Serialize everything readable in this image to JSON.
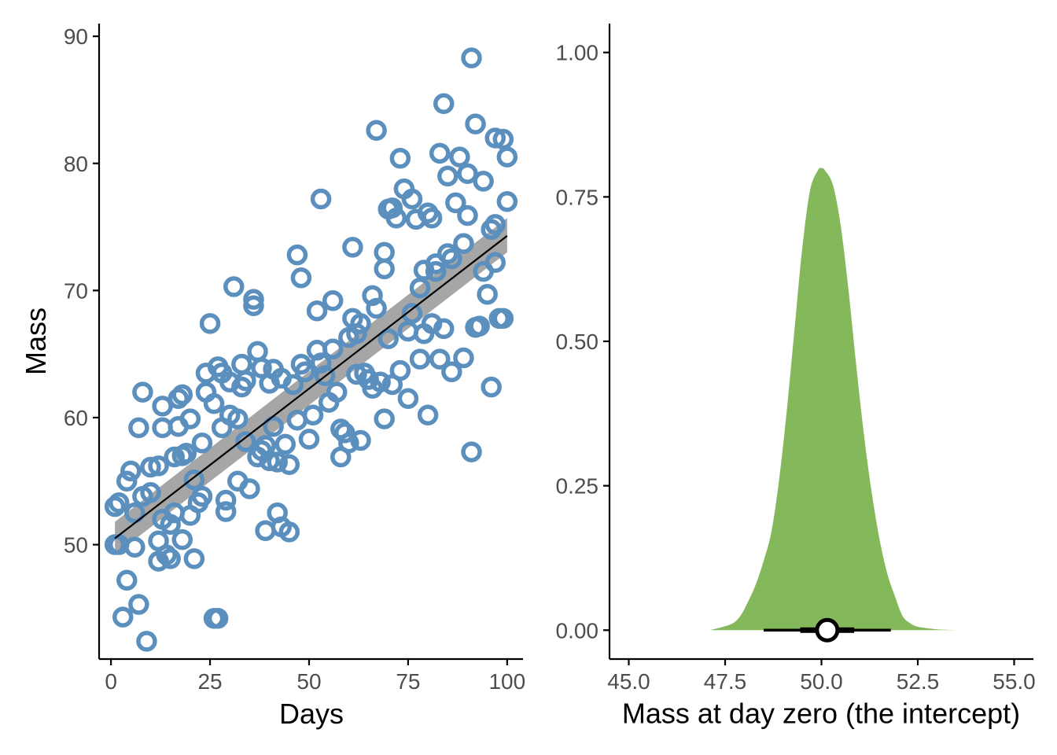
{
  "colors": {
    "points": "#5b8fbd",
    "ribbon": "#a6a6a6",
    "fit_line": "#000000",
    "density": "#84b95b",
    "interval": "#000000"
  },
  "chart_data": [
    {
      "type": "scatter",
      "title": "",
      "xlabel": "Days",
      "ylabel": "Mass",
      "xlim": [
        -3,
        104
      ],
      "ylim": [
        41,
        91
      ],
      "x_ticks": [
        0,
        25,
        50,
        75,
        100
      ],
      "x_tick_labels": [
        "0",
        "25",
        "50",
        "75",
        "100"
      ],
      "y_ticks": [
        50,
        60,
        70,
        80,
        90
      ],
      "y_tick_labels": [
        "50",
        "60",
        "70",
        "80",
        "90"
      ],
      "grid": false,
      "legend": "none",
      "fit": {
        "type": "line",
        "x": [
          1,
          100
        ],
        "y": [
          50.5,
          74.3
        ],
        "ribbon_lower": [
          49.2,
          73.0
        ],
        "ribbon_upper": [
          51.8,
          75.7
        ]
      },
      "points": [
        [
          1,
          53
        ],
        [
          1,
          50
        ],
        [
          2,
          50
        ],
        [
          2,
          53.3
        ],
        [
          3,
          44.3
        ],
        [
          4,
          47.2
        ],
        [
          4,
          55
        ],
        [
          5,
          55.8
        ],
        [
          6,
          52.5
        ],
        [
          6,
          49.8
        ],
        [
          7,
          45.3
        ],
        [
          7,
          59.2
        ],
        [
          8,
          62
        ],
        [
          8,
          53.8
        ],
        [
          9,
          42.4
        ],
        [
          10,
          54.1
        ],
        [
          10,
          56.1
        ],
        [
          12,
          56.2
        ],
        [
          12,
          50.3
        ],
        [
          12,
          48.7
        ],
        [
          13,
          52
        ],
        [
          13,
          59.2
        ],
        [
          13,
          60.9
        ],
        [
          14,
          49.2
        ],
        [
          15,
          48.9
        ],
        [
          15,
          51.6
        ],
        [
          16,
          52.5
        ],
        [
          16,
          56.9
        ],
        [
          17,
          61.5
        ],
        [
          17,
          59.3
        ],
        [
          18,
          61.8
        ],
        [
          18,
          57
        ],
        [
          18,
          50.4
        ],
        [
          19,
          57.2
        ],
        [
          20,
          59.9
        ],
        [
          20,
          52.3
        ],
        [
          21,
          48.9
        ],
        [
          21,
          55.1
        ],
        [
          22,
          53.3
        ],
        [
          23,
          58
        ],
        [
          23,
          53.8
        ],
        [
          24,
          62
        ],
        [
          24,
          63.5
        ],
        [
          25,
          67.4
        ],
        [
          26,
          61.1
        ],
        [
          26,
          44.2
        ],
        [
          27,
          64
        ],
        [
          27,
          44.2
        ],
        [
          28,
          63.5
        ],
        [
          28,
          59.2
        ],
        [
          29,
          52.6
        ],
        [
          29,
          53.5
        ],
        [
          30,
          62.8
        ],
        [
          30,
          60.2
        ],
        [
          31,
          70.3
        ],
        [
          32,
          59.9
        ],
        [
          32,
          55
        ],
        [
          33,
          62.4
        ],
        [
          33,
          64.2
        ],
        [
          34,
          62.9
        ],
        [
          34,
          58.1
        ],
        [
          35,
          54.4
        ],
        [
          36,
          69.3
        ],
        [
          36,
          68.8
        ],
        [
          37,
          65.2
        ],
        [
          37,
          56.9
        ],
        [
          38,
          57.4
        ],
        [
          38,
          63.9
        ],
        [
          39,
          51.1
        ],
        [
          39,
          57.8
        ],
        [
          40,
          62.7
        ],
        [
          40,
          56.6
        ],
        [
          41,
          59.3
        ],
        [
          41,
          63.8
        ],
        [
          42,
          52.5
        ],
        [
          42,
          56.5
        ],
        [
          43,
          63.1
        ],
        [
          43,
          51.4
        ],
        [
          44,
          57.9
        ],
        [
          45,
          51
        ],
        [
          45,
          56.3
        ],
        [
          46,
          62.6
        ],
        [
          47,
          72.8
        ],
        [
          47,
          59.8
        ],
        [
          48,
          64.2
        ],
        [
          48,
          71
        ],
        [
          49,
          63.6
        ],
        [
          50,
          58.3
        ],
        [
          51,
          60.2
        ],
        [
          52,
          65.3
        ],
        [
          52,
          68.4
        ],
        [
          53,
          77.2
        ],
        [
          53,
          64.3
        ],
        [
          54,
          63.3
        ],
        [
          55,
          61.2
        ],
        [
          56,
          69.2
        ],
        [
          56,
          65.4
        ],
        [
          57,
          62
        ],
        [
          58,
          56.9
        ],
        [
          58,
          59.1
        ],
        [
          59,
          58.8
        ],
        [
          60,
          58
        ],
        [
          60,
          66.3
        ],
        [
          61,
          67.8
        ],
        [
          61,
          73.4
        ],
        [
          62,
          63.4
        ],
        [
          62,
          66.6
        ],
        [
          63,
          58.2
        ],
        [
          63,
          67.4
        ],
        [
          64,
          63.5
        ],
        [
          65,
          63
        ],
        [
          66,
          69.6
        ],
        [
          66,
          62.3
        ],
        [
          67,
          82.6
        ],
        [
          67,
          68.6
        ],
        [
          68,
          62.8
        ],
        [
          69,
          59.9
        ],
        [
          69,
          71.7
        ],
        [
          69,
          73
        ],
        [
          70,
          76.4
        ],
        [
          70,
          66.2
        ],
        [
          71,
          62.6
        ],
        [
          71,
          76.5
        ],
        [
          72,
          75.7
        ],
        [
          73,
          63.7
        ],
        [
          73,
          80.4
        ],
        [
          74,
          78
        ],
        [
          75,
          66.8
        ],
        [
          75,
          61.5
        ],
        [
          76,
          77.2
        ],
        [
          76,
          68.2
        ],
        [
          77,
          75.6
        ],
        [
          78,
          70.2
        ],
        [
          78,
          64.6
        ],
        [
          79,
          71.6
        ],
        [
          79,
          66.6
        ],
        [
          80,
          76.1
        ],
        [
          80,
          60.2
        ],
        [
          81,
          67.4
        ],
        [
          81,
          75.7
        ],
        [
          82,
          71.5
        ],
        [
          82,
          72.1
        ],
        [
          83,
          80.8
        ],
        [
          83,
          64.6
        ],
        [
          84,
          84.7
        ],
        [
          84,
          67
        ],
        [
          85,
          79
        ],
        [
          85,
          72.9
        ],
        [
          86,
          72.5
        ],
        [
          86,
          63.6
        ],
        [
          87,
          76.9
        ],
        [
          88,
          80.5
        ],
        [
          89,
          64.7
        ],
        [
          89,
          73.7
        ],
        [
          90,
          79.2
        ],
        [
          90,
          75.9
        ],
        [
          91,
          57.3
        ],
        [
          91,
          88.3
        ],
        [
          92,
          83.1
        ],
        [
          92,
          67.1
        ],
        [
          93,
          67.2
        ],
        [
          94,
          78.6
        ],
        [
          94,
          71.5
        ],
        [
          95,
          69.7
        ],
        [
          96,
          74.8
        ],
        [
          96,
          62.4
        ],
        [
          97,
          72.2
        ],
        [
          97,
          75.2
        ],
        [
          97,
          82
        ],
        [
          98,
          67.8
        ],
        [
          99,
          81.9
        ],
        [
          99,
          67.8
        ],
        [
          100,
          80.5
        ],
        [
          100,
          77
        ]
      ]
    },
    {
      "type": "area",
      "title": "",
      "xlabel": "Mass at day zero (the intercept)",
      "ylabel": "",
      "xlim": [
        44.5,
        55.5
      ],
      "ylim": [
        -0.05,
        1.05
      ],
      "x_ticks": [
        45.0,
        47.5,
        50.0,
        52.5,
        55.0
      ],
      "x_tick_labels": [
        "45.0",
        "47.5",
        "50.0",
        "52.5",
        "55.0"
      ],
      "y_ticks": [
        0.0,
        0.25,
        0.5,
        0.75,
        1.0
      ],
      "y_tick_labels": [
        "0.00",
        "0.25",
        "0.50",
        "0.75",
        "1.00"
      ],
      "grid": false,
      "legend": "none",
      "density": {
        "x": [
          47.1,
          47.4,
          47.7,
          47.9,
          48.1,
          48.3,
          48.5,
          48.7,
          48.9,
          49.1,
          49.3,
          49.5,
          49.7,
          49.9,
          50.0,
          50.1,
          50.3,
          50.5,
          50.7,
          50.9,
          51.1,
          51.3,
          51.5,
          51.7,
          51.9,
          52.1,
          52.3,
          52.5,
          52.8,
          53.1,
          53.5
        ],
        "y": [
          0.0,
          0.005,
          0.012,
          0.025,
          0.05,
          0.08,
          0.12,
          0.17,
          0.26,
          0.38,
          0.52,
          0.66,
          0.76,
          0.795,
          0.8,
          0.795,
          0.77,
          0.7,
          0.59,
          0.46,
          0.34,
          0.24,
          0.16,
          0.1,
          0.06,
          0.025,
          0.012,
          0.006,
          0.003,
          0.001,
          0.0
        ]
      },
      "point_interval": {
        "point": 50.15,
        "inner": [
          49.45,
          50.85
        ],
        "outer": [
          48.5,
          51.8
        ]
      }
    }
  ]
}
